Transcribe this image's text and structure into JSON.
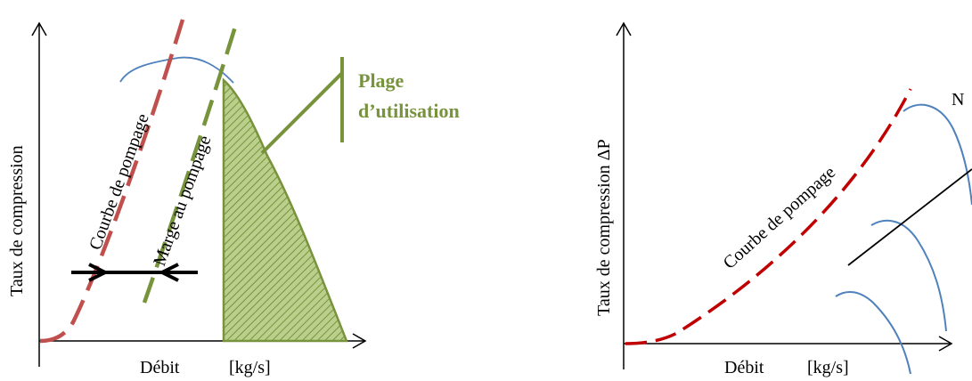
{
  "left_diagram": {
    "y_axis_label": "Taux de compression",
    "x_axis_label": "Débit",
    "x_unit_label": "[kg/s]",
    "surge_curve_label": "Courbe de pompage",
    "surge_margin_label": "Marge au pompage",
    "operating_range_label_line1": "Plage",
    "operating_range_label_line2": "d’utilisation"
  },
  "right_diagram": {
    "y_axis_label": "Taux de compression ΔP",
    "x_axis_label": "Débit",
    "x_unit_label": "[kg/s]",
    "surge_curve_label": "Courbe de pompage",
    "speed_arrow_label": "N"
  },
  "colors": {
    "surge_curve": "#c0504d",
    "surge_margin": "#77933c",
    "operating_range": "#77933c",
    "characteristic_curves": "#4f81bd",
    "right_surge_curve": "#c00000",
    "axes": "#000000"
  }
}
